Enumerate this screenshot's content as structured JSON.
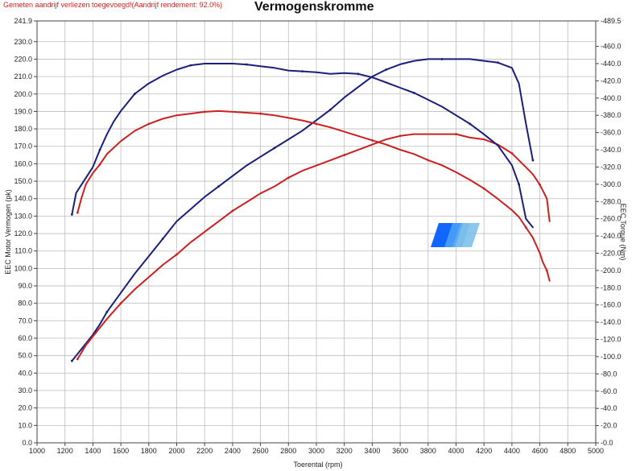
{
  "header": {
    "note": "Gemeten aandrijf verliezen toegevoegd!(Aandrijf rendement: 92.0%)",
    "title": "Vermogenskromme"
  },
  "chart_data": {
    "type": "line",
    "title": "Vermogenskromme",
    "xlabel": "Toerental (rpm)",
    "ylabel_left": "EEC Motor Vermogen (pk)",
    "ylabel_right": "EEC Torque (Nm)",
    "xlim": [
      1000,
      5000
    ],
    "ylim_left": [
      0,
      241.9
    ],
    "ylim_right": [
      0,
      489.5
    ],
    "x_ticks": [
      "1000",
      "1200",
      "1400",
      "1600",
      "1800",
      "2000",
      "2200",
      "2400",
      "2600",
      "2800",
      "3000",
      "3200",
      "3400",
      "3600",
      "3800",
      "4000",
      "4200",
      "4400",
      "4600",
      "4800",
      "5000"
    ],
    "y_left_ticks": [
      "0.0",
      "10.0",
      "20.0",
      "30.0",
      "40.0",
      "50.0",
      "60.0",
      "70.0",
      "80.0",
      "90.0",
      "100.0",
      "110.0",
      "120.0",
      "130.0",
      "140.0",
      "150.0",
      "160.0",
      "170.0",
      "180.0",
      "190.0",
      "200.0",
      "210.0",
      "220.0",
      "230.0",
      "241.9"
    ],
    "y_right_ticks": [
      "0.0",
      "20.0",
      "40.0",
      "60.0",
      "80.0",
      "100.0",
      "120.0",
      "140.0",
      "160.0",
      "180.0",
      "200.0",
      "220.0",
      "240.0",
      "260.0",
      "280.0",
      "300.0",
      "320.0",
      "340.0",
      "360.0",
      "380.0",
      "400.0",
      "420.0",
      "440.0",
      "460.0",
      "489.5"
    ],
    "grid": true,
    "series": [
      {
        "axis": "left",
        "color": "#1a1f7a",
        "x": [
          1250,
          1330,
          1400,
          1450,
          1500,
          1600,
          1700,
          1800,
          1900,
          2000,
          2100,
          2200,
          2300,
          2400,
          2500,
          2600,
          2700,
          2800,
          2900,
          3000,
          3100,
          3200,
          3300,
          3400,
          3500,
          3600,
          3700,
          3800,
          3900,
          4000,
          4100,
          4200,
          4300,
          4400,
          4450,
          4500,
          4550
        ],
        "y": [
          47,
          55,
          62,
          68,
          75,
          86,
          97,
          107,
          117,
          127,
          134,
          141,
          147,
          153,
          159,
          164,
          169,
          174,
          179,
          185,
          191,
          198,
          204,
          210,
          214,
          217,
          219,
          220,
          220,
          220,
          220,
          219,
          218,
          215,
          206,
          183,
          162
        ]
      },
      {
        "axis": "left",
        "color": "#cc2020",
        "x": [
          1290,
          1350,
          1400,
          1500,
          1600,
          1700,
          1800,
          1900,
          2000,
          2100,
          2200,
          2300,
          2400,
          2500,
          2600,
          2700,
          2800,
          2900,
          3000,
          3100,
          3200,
          3300,
          3400,
          3500,
          3600,
          3700,
          3800,
          3900,
          4000,
          4100,
          4200,
          4300,
          4400,
          4450,
          4500,
          4550,
          4600,
          4650,
          4670
        ],
        "y": [
          48,
          56,
          61,
          71,
          80,
          88,
          95,
          102,
          108,
          115,
          121,
          127,
          133,
          138,
          143,
          147,
          152,
          156,
          159,
          162,
          165,
          168,
          171,
          174,
          176,
          177,
          177,
          177,
          177,
          175,
          174,
          171,
          166,
          162,
          158,
          154,
          148,
          140,
          127
        ]
      },
      {
        "axis": "right",
        "color": "#1a1f7a",
        "x": [
          1250,
          1280,
          1320,
          1400,
          1450,
          1500,
          1550,
          1600,
          1700,
          1800,
          1900,
          2000,
          2100,
          2200,
          2300,
          2400,
          2500,
          2600,
          2700,
          2800,
          2900,
          3000,
          3100,
          3200,
          3300,
          3400,
          3500,
          3600,
          3700,
          3800,
          3900,
          4000,
          4100,
          4200,
          4300,
          4400,
          4450,
          4500,
          4550
        ],
        "y": [
          265,
          290,
          300,
          320,
          340,
          358,
          373,
          385,
          405,
          417,
          426,
          433,
          438,
          440,
          440,
          440,
          439,
          437,
          435,
          432,
          431,
          430,
          428,
          429,
          428,
          424,
          418,
          412,
          406,
          398,
          390,
          380,
          370,
          358,
          345,
          322,
          300,
          260,
          250
        ]
      },
      {
        "axis": "right",
        "color": "#cc2020",
        "x": [
          1290,
          1320,
          1350,
          1400,
          1450,
          1500,
          1600,
          1700,
          1800,
          1900,
          2000,
          2100,
          2200,
          2300,
          2400,
          2500,
          2600,
          2700,
          2800,
          2900,
          3000,
          3100,
          3200,
          3300,
          3400,
          3500,
          3600,
          3700,
          3800,
          3900,
          4000,
          4100,
          4200,
          4300,
          4400,
          4450,
          4500,
          4550,
          4600,
          4620,
          4650,
          4670
        ],
        "y": [
          267,
          285,
          300,
          313,
          323,
          335,
          350,
          362,
          370,
          376,
          380,
          382,
          384,
          385,
          384,
          383,
          382,
          380,
          377,
          374,
          370,
          366,
          361,
          356,
          351,
          346,
          340,
          335,
          328,
          322,
          314,
          305,
          295,
          283,
          270,
          262,
          250,
          238,
          220,
          210,
          200,
          188
        ]
      }
    ]
  }
}
